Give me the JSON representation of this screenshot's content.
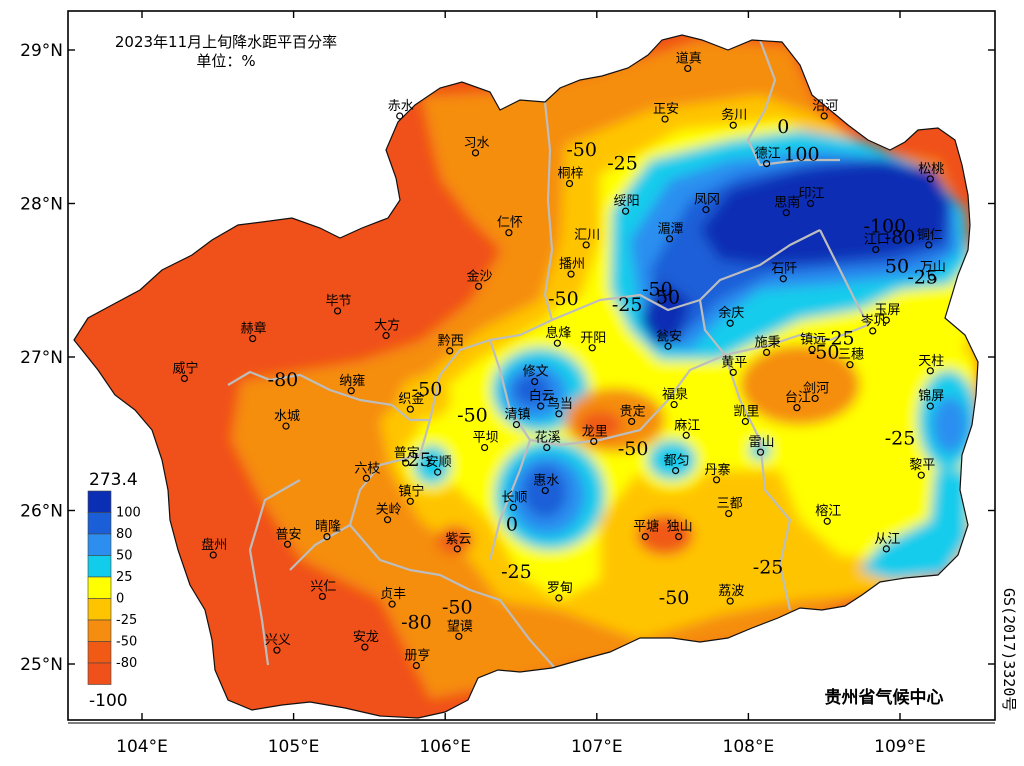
{
  "title": {
    "line1": "2023年11月上旬降水距平百分率",
    "line2": "单位：%"
  },
  "organization": "贵州省气候中心",
  "map_code": "GS(2017)3320号",
  "axes": {
    "lon_ticks": [
      {
        "value": 104,
        "label": "104°E"
      },
      {
        "value": 105,
        "label": "105°E"
      },
      {
        "value": 106,
        "label": "106°E"
      },
      {
        "value": 107,
        "label": "107°E"
      },
      {
        "value": 108,
        "label": "108°E"
      },
      {
        "value": 109,
        "label": "109°E"
      }
    ],
    "lat_ticks": [
      {
        "value": 29,
        "label": "29°N"
      },
      {
        "value": 28,
        "label": "28°N"
      },
      {
        "value": 27,
        "label": "27°N"
      },
      {
        "value": 26,
        "label": "26°N"
      },
      {
        "value": 25,
        "label": "25°N"
      }
    ]
  },
  "legend": {
    "max_label": "273.4",
    "min_label": "-100",
    "levels": [
      {
        "label": "100",
        "color": "#0b2fb4"
      },
      {
        "label": "80",
        "color": "#1a5fd8"
      },
      {
        "label": "50",
        "color": "#2c8ff0"
      },
      {
        "label": "25",
        "color": "#12ccec"
      },
      {
        "label": "0",
        "color": "#ffff00"
      },
      {
        "label": "-25",
        "color": "#ffc400"
      },
      {
        "label": "-50",
        "color": "#f58d10"
      },
      {
        "label": "-80",
        "color": "#f05a14"
      }
    ],
    "base_color": "#f0501a"
  },
  "contour_labels": [
    {
      "text": "-50",
      "lon": 106.9,
      "lat": 28.31
    },
    {
      "text": "-25",
      "lon": 107.17,
      "lat": 28.22
    },
    {
      "text": "0",
      "lon": 108.23,
      "lat": 28.46
    },
    {
      "text": "100",
      "lon": 108.35,
      "lat": 28.28
    },
    {
      "text": "-100",
      "lon": 108.9,
      "lat": 27.81
    },
    {
      "text": "-80",
      "lon": 109.0,
      "lat": 27.74
    },
    {
      "text": "50",
      "lon": 108.98,
      "lat": 27.55
    },
    {
      "text": "-25",
      "lon": 109.15,
      "lat": 27.48
    },
    {
      "text": "-25",
      "lon": 108.6,
      "lat": 27.08
    },
    {
      "text": "-50",
      "lon": 108.5,
      "lat": 26.99
    },
    {
      "text": "-25",
      "lon": 109.0,
      "lat": 26.43
    },
    {
      "text": "-50",
      "lon": 107.4,
      "lat": 27.4
    },
    {
      "text": "-25",
      "lon": 107.2,
      "lat": 27.3
    },
    {
      "text": "50",
      "lon": 107.47,
      "lat": 27.35
    },
    {
      "text": "-50",
      "lon": 106.78,
      "lat": 27.34
    },
    {
      "text": "-50",
      "lon": 105.88,
      "lat": 26.75
    },
    {
      "text": "-80",
      "lon": 104.93,
      "lat": 26.81
    },
    {
      "text": "-50",
      "lon": 106.18,
      "lat": 26.58
    },
    {
      "text": "-25",
      "lon": 105.81,
      "lat": 26.29
    },
    {
      "text": "-50",
      "lon": 107.24,
      "lat": 26.36
    },
    {
      "text": "0",
      "lon": 106.44,
      "lat": 25.87
    },
    {
      "text": "-25",
      "lon": 106.47,
      "lat": 25.56
    },
    {
      "text": "-80",
      "lon": 105.81,
      "lat": 25.23
    },
    {
      "text": "-50",
      "lon": 106.08,
      "lat": 25.33
    },
    {
      "text": "-50",
      "lon": 107.51,
      "lat": 25.39
    },
    {
      "text": "-25",
      "lon": 108.13,
      "lat": 25.59
    }
  ],
  "cities": [
    {
      "name": "赤水",
      "lon": 105.7,
      "lat": 28.57
    },
    {
      "name": "习水",
      "lon": 106.2,
      "lat": 28.33
    },
    {
      "name": "道真",
      "lon": 107.6,
      "lat": 28.88
    },
    {
      "name": "正安",
      "lon": 107.45,
      "lat": 28.55
    },
    {
      "name": "务川",
      "lon": 107.9,
      "lat": 28.51
    },
    {
      "name": "沿河",
      "lon": 108.5,
      "lat": 28.57
    },
    {
      "name": "德江",
      "lon": 108.12,
      "lat": 28.26
    },
    {
      "name": "桐梓",
      "lon": 106.82,
      "lat": 28.13
    },
    {
      "name": "绥阳",
      "lon": 107.19,
      "lat": 27.95
    },
    {
      "name": "凤冈",
      "lon": 107.72,
      "lat": 27.96
    },
    {
      "name": "印江",
      "lon": 108.41,
      "lat": 28.0
    },
    {
      "name": "思南",
      "lon": 108.25,
      "lat": 27.94
    },
    {
      "name": "松桃",
      "lon": 109.2,
      "lat": 28.16
    },
    {
      "name": "仁怀",
      "lon": 106.42,
      "lat": 27.81
    },
    {
      "name": "湄潭",
      "lon": 107.48,
      "lat": 27.77
    },
    {
      "name": "汇川",
      "lon": 106.93,
      "lat": 27.73
    },
    {
      "name": "江口",
      "lon": 108.84,
      "lat": 27.7
    },
    {
      "name": "铜仁",
      "lon": 109.19,
      "lat": 27.73
    },
    {
      "name": "播州",
      "lon": 106.83,
      "lat": 27.54
    },
    {
      "name": "金沙",
      "lon": 106.22,
      "lat": 27.46
    },
    {
      "name": "石阡",
      "lon": 108.23,
      "lat": 27.51
    },
    {
      "name": "万山",
      "lon": 109.21,
      "lat": 27.52
    },
    {
      "name": "毕节",
      "lon": 105.29,
      "lat": 27.3
    },
    {
      "name": "大方",
      "lon": 105.61,
      "lat": 27.14
    },
    {
      "name": "余庆",
      "lon": 107.88,
      "lat": 27.22
    },
    {
      "name": "玉屏",
      "lon": 108.91,
      "lat": 27.24
    },
    {
      "name": "赫章",
      "lon": 104.73,
      "lat": 27.12
    },
    {
      "name": "黔西",
      "lon": 106.03,
      "lat": 27.04
    },
    {
      "name": "息烽",
      "lon": 106.74,
      "lat": 27.09
    },
    {
      "name": "开阳",
      "lon": 106.97,
      "lat": 27.06
    },
    {
      "name": "瓮安",
      "lon": 107.47,
      "lat": 27.07
    },
    {
      "name": "施秉",
      "lon": 108.12,
      "lat": 27.03
    },
    {
      "name": "镇远",
      "lon": 108.42,
      "lat": 27.05
    },
    {
      "name": "岑巩",
      "lon": 108.82,
      "lat": 27.17
    },
    {
      "name": "三穗",
      "lon": 108.67,
      "lat": 26.95
    },
    {
      "name": "威宁",
      "lon": 104.28,
      "lat": 26.86
    },
    {
      "name": "纳雍",
      "lon": 105.38,
      "lat": 26.78
    },
    {
      "name": "修文",
      "lon": 106.59,
      "lat": 26.84
    },
    {
      "name": "黄平",
      "lon": 107.9,
      "lat": 26.9
    },
    {
      "name": "天柱",
      "lon": 109.2,
      "lat": 26.91
    },
    {
      "name": "福泉",
      "lon": 107.51,
      "lat": 26.69
    },
    {
      "name": "台江",
      "lon": 108.32,
      "lat": 26.67
    },
    {
      "name": "剑河",
      "lon": 108.44,
      "lat": 26.73
    },
    {
      "name": "织金",
      "lon": 105.77,
      "lat": 26.66
    },
    {
      "name": "白云",
      "lon": 106.63,
      "lat": 26.68
    },
    {
      "name": "乌当",
      "lon": 106.75,
      "lat": 26.63
    },
    {
      "name": "水城",
      "lon": 104.95,
      "lat": 26.55
    },
    {
      "name": "清镇",
      "lon": 106.47,
      "lat": 26.56
    },
    {
      "name": "贵定",
      "lon": 107.23,
      "lat": 26.58
    },
    {
      "name": "凯里",
      "lon": 107.98,
      "lat": 26.58
    },
    {
      "name": "锦屏",
      "lon": 109.2,
      "lat": 26.68
    },
    {
      "name": "麻江",
      "lon": 107.59,
      "lat": 26.49
    },
    {
      "name": "花溪",
      "lon": 106.67,
      "lat": 26.41
    },
    {
      "name": "龙里",
      "lon": 106.98,
      "lat": 26.45
    },
    {
      "name": "雷山",
      "lon": 108.08,
      "lat": 26.38
    },
    {
      "name": "平坝",
      "lon": 106.26,
      "lat": 26.41
    },
    {
      "name": "普定",
      "lon": 105.74,
      "lat": 26.31
    },
    {
      "name": "安顺",
      "lon": 105.95,
      "lat": 26.25
    },
    {
      "name": "都匀",
      "lon": 107.52,
      "lat": 26.26
    },
    {
      "name": "六枝",
      "lon": 105.48,
      "lat": 26.21
    },
    {
      "name": "黎平",
      "lon": 109.14,
      "lat": 26.23
    },
    {
      "name": "丹寨",
      "lon": 107.79,
      "lat": 26.2
    },
    {
      "name": "惠水",
      "lon": 106.66,
      "lat": 26.13
    },
    {
      "name": "镇宁",
      "lon": 105.77,
      "lat": 26.06
    },
    {
      "name": "长顺",
      "lon": 106.45,
      "lat": 26.02
    },
    {
      "name": "三都",
      "lon": 107.87,
      "lat": 25.98
    },
    {
      "name": "关岭",
      "lon": 105.62,
      "lat": 25.94
    },
    {
      "name": "榕江",
      "lon": 108.52,
      "lat": 25.93
    },
    {
      "name": "盘州",
      "lon": 104.47,
      "lat": 25.71
    },
    {
      "name": "普安",
      "lon": 104.96,
      "lat": 25.78
    },
    {
      "name": "晴隆",
      "lon": 105.22,
      "lat": 25.83
    },
    {
      "name": "平塘",
      "lon": 107.32,
      "lat": 25.83
    },
    {
      "name": "独山",
      "lon": 107.54,
      "lat": 25.83
    },
    {
      "name": "从江",
      "lon": 108.91,
      "lat": 25.75
    },
    {
      "name": "紫云",
      "lon": 106.08,
      "lat": 25.75
    },
    {
      "name": "罗甸",
      "lon": 106.75,
      "lat": 25.43
    },
    {
      "name": "兴仁",
      "lon": 105.19,
      "lat": 25.44
    },
    {
      "name": "贞丰",
      "lon": 105.65,
      "lat": 25.39
    },
    {
      "name": "荔波",
      "lon": 107.88,
      "lat": 25.41
    },
    {
      "name": "望谟",
      "lon": 106.09,
      "lat": 25.18
    },
    {
      "name": "兴义",
      "lon": 104.89,
      "lat": 25.09
    },
    {
      "name": "安龙",
      "lon": 105.47,
      "lat": 25.11
    },
    {
      "name": "册亨",
      "lon": 105.81,
      "lat": 24.99
    }
  ]
}
